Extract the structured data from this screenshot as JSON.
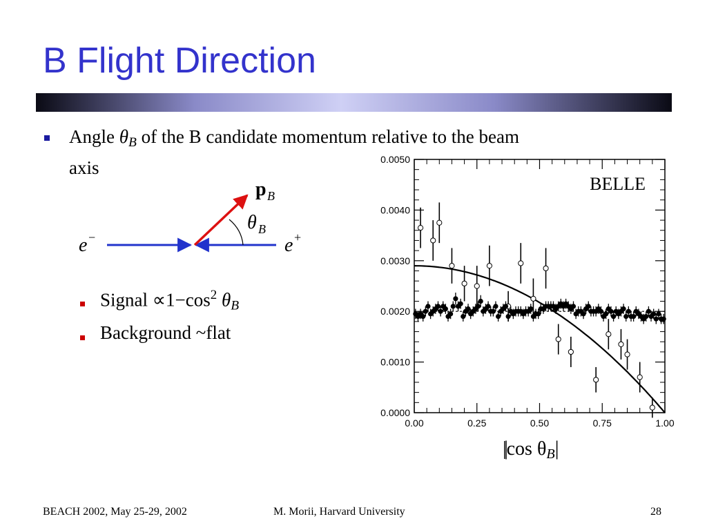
{
  "slide": {
    "title": "B Flight Direction",
    "bullets": {
      "main_prefix": "Angle",
      "theta": "θ",
      "theta_sub": "B",
      "main_suffix": "of the B candidate momentum relative to the beam",
      "main_line2": "axis",
      "signal_label": "Signal",
      "signal_formula": "∝1−cos",
      "signal_power": "2",
      "background_label": "Background ~flat"
    },
    "diagram": {
      "p_label": "p",
      "p_sub": "B",
      "theta_label": "θ",
      "theta_sub": "B",
      "e_minus": "e",
      "e_minus_sup": "−",
      "e_plus": "e",
      "e_plus_sup": "+"
    },
    "footer": {
      "left": "BEACH 2002, May 25-29, 2002",
      "center": "M. Morii, Harvard University",
      "page": "28"
    },
    "colors": {
      "title": "#3333cc",
      "arrow_beam": "#2233cc",
      "arrow_pb": "#dd1111",
      "bullet_main": "#1a1aa0",
      "bullet_sub": "#cc0000"
    }
  },
  "chart_data": {
    "type": "scatter",
    "annotation": "BELLE",
    "xlabel": "|cos θ",
    "xlabel_sub": "B",
    "xlim": [
      0.0,
      1.0
    ],
    "ylim": [
      0.0,
      0.005
    ],
    "xticks": [
      "0.00",
      "0.25",
      "0.50",
      "0.75",
      "1.00"
    ],
    "yticks": [
      "0.0000",
      "0.0010",
      "0.0020",
      "0.0030",
      "0.0040",
      "0.0050"
    ],
    "series": [
      {
        "marker": "open-circle",
        "x": [
          0.025,
          0.075,
          0.1,
          0.15,
          0.2,
          0.25,
          0.3,
          0.375,
          0.425,
          0.475,
          0.525,
          0.575,
          0.625,
          0.725,
          0.775,
          0.825,
          0.85,
          0.9,
          0.95
        ],
        "y": [
          0.00365,
          0.0034,
          0.00375,
          0.0029,
          0.00255,
          0.0025,
          0.0029,
          0.0021,
          0.00295,
          0.00225,
          0.00285,
          0.00145,
          0.0012,
          0.00065,
          0.00155,
          0.00135,
          0.00115,
          0.0007,
          0.0001
        ],
        "err": [
          0.0004,
          0.0004,
          0.0004,
          0.00035,
          0.00035,
          0.0004,
          0.0004,
          0.0003,
          0.0004,
          0.0004,
          0.0004,
          0.0003,
          0.0003,
          0.00025,
          0.0003,
          0.0003,
          0.0003,
          0.0003,
          0.0002
        ]
      },
      {
        "marker": "filled-circle",
        "x": [
          0.005,
          0.015,
          0.025,
          0.035,
          0.045,
          0.055,
          0.065,
          0.075,
          0.085,
          0.095,
          0.105,
          0.115,
          0.125,
          0.135,
          0.145,
          0.155,
          0.165,
          0.175,
          0.185,
          0.195,
          0.205,
          0.215,
          0.225,
          0.235,
          0.245,
          0.255,
          0.265,
          0.275,
          0.285,
          0.295,
          0.305,
          0.315,
          0.325,
          0.335,
          0.345,
          0.355,
          0.365,
          0.375,
          0.385,
          0.395,
          0.405,
          0.415,
          0.425,
          0.435,
          0.445,
          0.455,
          0.465,
          0.475,
          0.485,
          0.495,
          0.505,
          0.515,
          0.525,
          0.535,
          0.545,
          0.555,
          0.565,
          0.575,
          0.585,
          0.595,
          0.605,
          0.615,
          0.625,
          0.635,
          0.645,
          0.655,
          0.665,
          0.675,
          0.685,
          0.695,
          0.705,
          0.715,
          0.725,
          0.735,
          0.745,
          0.755,
          0.765,
          0.775,
          0.785,
          0.795,
          0.805,
          0.815,
          0.825,
          0.835,
          0.845,
          0.855,
          0.865,
          0.875,
          0.885,
          0.895,
          0.905,
          0.915,
          0.925,
          0.935,
          0.945,
          0.955,
          0.965,
          0.975,
          0.985,
          0.995
        ],
        "y": [
          0.00195,
          0.0019,
          0.00195,
          0.0019,
          0.002,
          0.0021,
          0.00195,
          0.002,
          0.00205,
          0.0021,
          0.002,
          0.0021,
          0.00205,
          0.0019,
          0.00195,
          0.0021,
          0.00225,
          0.0021,
          0.00215,
          0.0019,
          0.002,
          0.00205,
          0.00195,
          0.002,
          0.00205,
          0.0021,
          0.0022,
          0.002,
          0.00205,
          0.0021,
          0.002,
          0.002,
          0.0021,
          0.0019,
          0.002,
          0.00205,
          0.0021,
          0.0019,
          0.002,
          0.00195,
          0.002,
          0.002,
          0.002,
          0.00195,
          0.002,
          0.002,
          0.00205,
          0.0019,
          0.00195,
          0.00195,
          0.00205,
          0.00205,
          0.0021,
          0.0021,
          0.0021,
          0.0021,
          0.00205,
          0.0021,
          0.00215,
          0.0021,
          0.00215,
          0.0021,
          0.00205,
          0.0021,
          0.00195,
          0.002,
          0.002,
          0.00195,
          0.00205,
          0.0021,
          0.002,
          0.002,
          0.002,
          0.00205,
          0.002,
          0.0019,
          0.00195,
          0.00205,
          0.002,
          0.0019,
          0.002,
          0.00195,
          0.002,
          0.00205,
          0.0019,
          0.002,
          0.0019,
          0.0019,
          0.002,
          0.00195,
          0.0019,
          0.00185,
          0.0019,
          0.002,
          0.0019,
          0.00195,
          0.00185,
          0.00195,
          0.00185,
          0.00185
        ],
        "err": [
          0.0001,
          0.0001,
          0.0001,
          0.0001,
          0.0001,
          0.0001,
          0.0001,
          0.0001,
          0.0001,
          0.0001,
          0.0001,
          0.0001,
          0.0001,
          0.0001,
          0.0001,
          0.0001,
          0.00012,
          0.0001,
          0.0001,
          0.0001,
          0.0001,
          0.0001,
          0.0001,
          0.0001,
          0.0001,
          0.0001,
          0.00012,
          0.0001,
          0.0001,
          0.0001,
          0.0001,
          0.0001,
          0.0001,
          0.0001,
          0.0001,
          0.0001,
          0.0001,
          0.0001,
          0.0001,
          0.0001,
          0.0001,
          0.0001,
          0.0001,
          0.0001,
          0.0001,
          0.0001,
          0.0001,
          0.0001,
          0.0001,
          0.0001,
          0.0001,
          0.0001,
          0.0001,
          0.0001,
          0.0001,
          0.0001,
          0.0001,
          0.0001,
          0.0001,
          0.0001,
          0.0001,
          0.0001,
          0.0001,
          0.0001,
          0.0001,
          0.0001,
          0.0001,
          0.0001,
          0.0001,
          0.0001,
          0.0001,
          0.0001,
          0.0001,
          0.0001,
          0.0001,
          0.0001,
          0.0001,
          0.0001,
          0.0001,
          0.0001,
          0.0001,
          0.0001,
          0.0001,
          0.0001,
          0.0001,
          0.0001,
          0.0001,
          0.0001,
          0.0001,
          0.0001,
          0.0001,
          0.0001,
          0.0001,
          0.0001,
          0.0001,
          0.0001,
          0.0001,
          0.0001,
          0.0001,
          0.0001
        ]
      }
    ],
    "curves": [
      {
        "kind": "fit-solid",
        "formula": "0.0029 * (1 - x^2)"
      },
      {
        "kind": "flat-dashed",
        "y": 0.002
      }
    ]
  }
}
